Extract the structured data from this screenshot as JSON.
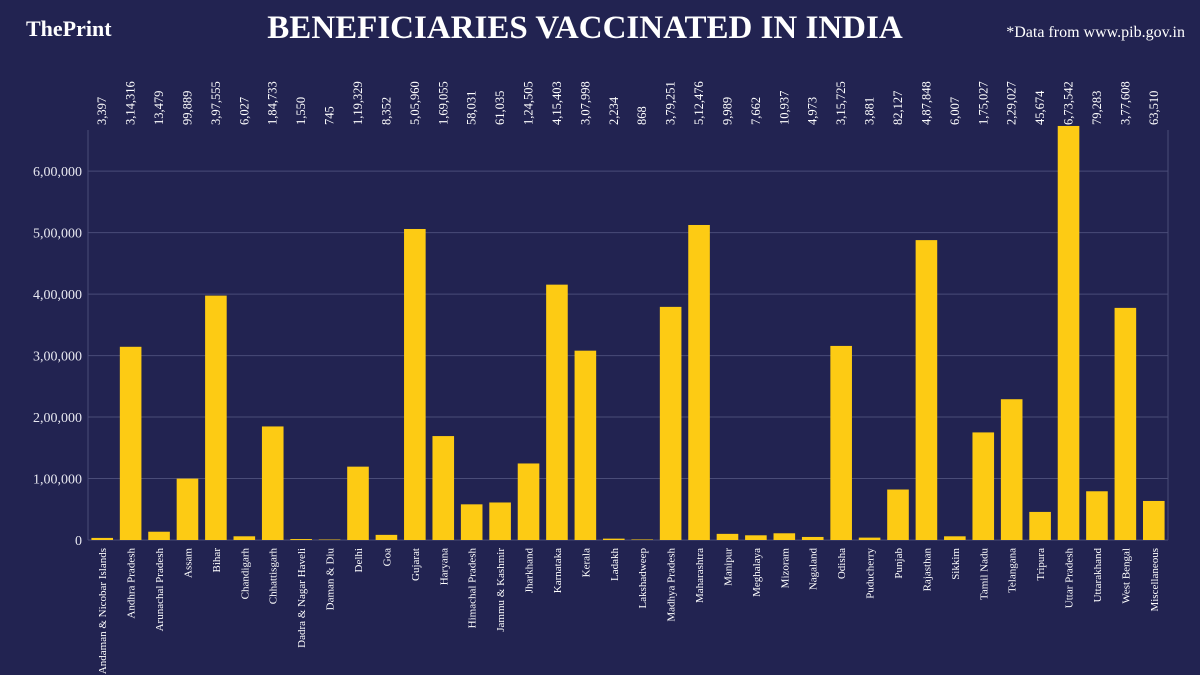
{
  "chart_data": {
    "type": "bar",
    "logo": "ThePrint",
    "title": "BENEFICIARIES VACCINATED IN INDIA",
    "source": "*Data from www.pib.gov.in",
    "color": "#fdcb14",
    "grid": true,
    "categories": [
      "Andaman & Nicobar Islands",
      "Andhra Pradesh",
      "Arunachal Pradesh",
      "Assam",
      "Bihar",
      "Chandigarh",
      "Chhattisgarh",
      "Dadra & Nagar Haveli",
      "Daman & Diu",
      "Delhi",
      "Goa",
      "Gujarat",
      "Haryana",
      "Himachal Pradesh",
      "Jammu & Kashmir",
      "Jharkhand",
      "Karnataka",
      "Kerala",
      "Ladakh",
      "Lakshadweep",
      "Madhya Pradesh",
      "Maharashtra",
      "Manipur",
      "Meghalaya",
      "Mizoram",
      "Nagaland",
      "Odisha",
      "Puducherry",
      "Punjab",
      "Rajasthan",
      "Sikkim",
      "Tamil Nadu",
      "Telangana",
      "Tripura",
      "Uttar Pradesh",
      "Uttarakhand",
      "West Bengal",
      "Miscellaneous"
    ],
    "values": [
      3397,
      314316,
      13479,
      99889,
      397555,
      6027,
      184733,
      1550,
      745,
      119329,
      8352,
      505960,
      169055,
      58031,
      61035,
      124505,
      415403,
      307998,
      2234,
      868,
      379251,
      512476,
      9989,
      7662,
      10937,
      4973,
      315725,
      3881,
      82127,
      487848,
      6007,
      175027,
      229027,
      45674,
      673542,
      79283,
      377608,
      63510
    ],
    "value_labels": [
      "3,397",
      "3,14,316",
      "13,479",
      "99,889",
      "3,97,555",
      "6,027",
      "1,84,733",
      "1,550",
      "745",
      "1,19,329",
      "8,352",
      "5,05,960",
      "1,69,055",
      "58,031",
      "61,035",
      "1,24,505",
      "4,15,403",
      "3,07,998",
      "2,234",
      "868",
      "3,79,251",
      "5,12,476",
      "9,989",
      "7,662",
      "10,937",
      "4,973",
      "3,15,725",
      "3,881",
      "82,127",
      "4,87,848",
      "6,007",
      "1,75,027",
      "2,29,027",
      "45,674",
      "6,73,542",
      "79,283",
      "3,77,608",
      "63,510"
    ],
    "ylim": [
      0,
      680000
    ],
    "yticks": [
      0,
      {
        "value": 100000,
        "label": "1,00,000"
      },
      {
        "value": 200000,
        "label": "2,00,000"
      },
      {
        "value": 300000,
        "label": "3,00,000"
      },
      {
        "value": 400000,
        "label": "4,00,000"
      },
      {
        "value": 500000,
        "label": "5,00,000"
      },
      {
        "value": 600000,
        "label": "6,00,000"
      }
    ]
  }
}
